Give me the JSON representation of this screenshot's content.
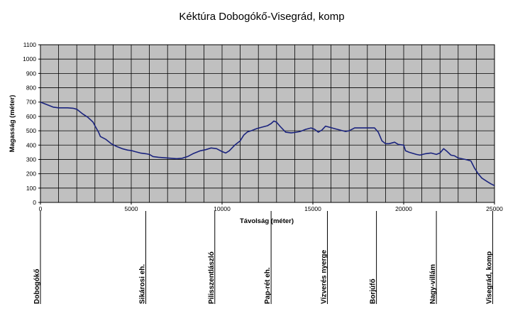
{
  "chart_data": {
    "type": "line",
    "title": "Kéktúra Dobogókő-Visegrád, komp",
    "xlabel": "Távolság (méter)",
    "ylabel": "Magasság (méter)",
    "xlim": [
      0,
      25000
    ],
    "ylim": [
      0,
      1100
    ],
    "xticks": [
      0,
      5000,
      10000,
      15000,
      20000,
      25000
    ],
    "yticks": [
      0,
      100,
      200,
      300,
      400,
      500,
      600,
      700,
      800,
      900,
      1000,
      1100
    ],
    "x_minor_step": 1000,
    "grid": true,
    "line_color": "#1a237e",
    "plot_background": "#c0c0c0",
    "series": [
      {
        "points": [
          [
            0,
            700
          ],
          [
            300,
            685
          ],
          [
            700,
            665
          ],
          [
            1000,
            660
          ],
          [
            1500,
            660
          ],
          [
            1800,
            657
          ],
          [
            2000,
            650
          ],
          [
            2300,
            620
          ],
          [
            2600,
            595
          ],
          [
            2900,
            560
          ],
          [
            3000,
            535
          ],
          [
            3200,
            490
          ],
          [
            3300,
            460
          ],
          [
            3600,
            440
          ],
          [
            3900,
            410
          ],
          [
            4200,
            390
          ],
          [
            4500,
            375
          ],
          [
            4800,
            365
          ],
          [
            5000,
            362
          ],
          [
            5200,
            355
          ],
          [
            5500,
            345
          ],
          [
            5800,
            340
          ],
          [
            6000,
            335
          ],
          [
            6200,
            320
          ],
          [
            6500,
            315
          ],
          [
            7000,
            310
          ],
          [
            7500,
            305
          ],
          [
            7800,
            308
          ],
          [
            8100,
            320
          ],
          [
            8400,
            340
          ],
          [
            8800,
            360
          ],
          [
            9100,
            368
          ],
          [
            9400,
            380
          ],
          [
            9700,
            375
          ],
          [
            10000,
            355
          ],
          [
            10200,
            345
          ],
          [
            10400,
            360
          ],
          [
            10700,
            400
          ],
          [
            11000,
            430
          ],
          [
            11200,
            470
          ],
          [
            11400,
            492
          ],
          [
            11600,
            500
          ],
          [
            11900,
            515
          ],
          [
            12200,
            525
          ],
          [
            12500,
            535
          ],
          [
            12700,
            550
          ],
          [
            12850,
            568
          ],
          [
            13000,
            560
          ],
          [
            13200,
            530
          ],
          [
            13500,
            490
          ],
          [
            13800,
            485
          ],
          [
            14000,
            488
          ],
          [
            14300,
            495
          ],
          [
            14600,
            510
          ],
          [
            14900,
            520
          ],
          [
            15100,
            510
          ],
          [
            15300,
            490
          ],
          [
            15500,
            505
          ],
          [
            15700,
            532
          ],
          [
            15900,
            525
          ],
          [
            16200,
            515
          ],
          [
            16500,
            505
          ],
          [
            16800,
            495
          ],
          [
            17000,
            500
          ],
          [
            17300,
            520
          ],
          [
            17800,
            520
          ],
          [
            18200,
            520
          ],
          [
            18400,
            520
          ],
          [
            18600,
            490
          ],
          [
            18800,
            430
          ],
          [
            19000,
            410
          ],
          [
            19200,
            410
          ],
          [
            19500,
            420
          ],
          [
            19700,
            405
          ],
          [
            20000,
            400
          ],
          [
            20100,
            360
          ],
          [
            20300,
            350
          ],
          [
            20700,
            335
          ],
          [
            20900,
            330
          ],
          [
            21200,
            340
          ],
          [
            21500,
            345
          ],
          [
            21800,
            335
          ],
          [
            22000,
            345
          ],
          [
            22200,
            375
          ],
          [
            22400,
            355
          ],
          [
            22600,
            330
          ],
          [
            22800,
            325
          ],
          [
            23000,
            310
          ],
          [
            23400,
            300
          ],
          [
            23700,
            290
          ],
          [
            23900,
            240
          ],
          [
            24100,
            200
          ],
          [
            24300,
            170
          ],
          [
            24600,
            145
          ],
          [
            24800,
            130
          ],
          [
            24960,
            120
          ],
          [
            25000,
            118
          ]
        ]
      }
    ],
    "stations": [
      {
        "label": "Dobogókő",
        "x": 0
      },
      {
        "label": "Sikárosi eh.",
        "x": 5800
      },
      {
        "label": "Pilisszentlászló",
        "x": 9600
      },
      {
        "label": "Pap-rét eh.",
        "x": 12700
      },
      {
        "label": "Vízverés nyerge",
        "x": 15800
      },
      {
        "label": "Borjúfő",
        "x": 18500
      },
      {
        "label": "Nagy-villám",
        "x": 21800
      },
      {
        "label": "Visegrád, komp",
        "x": 24900
      }
    ]
  }
}
